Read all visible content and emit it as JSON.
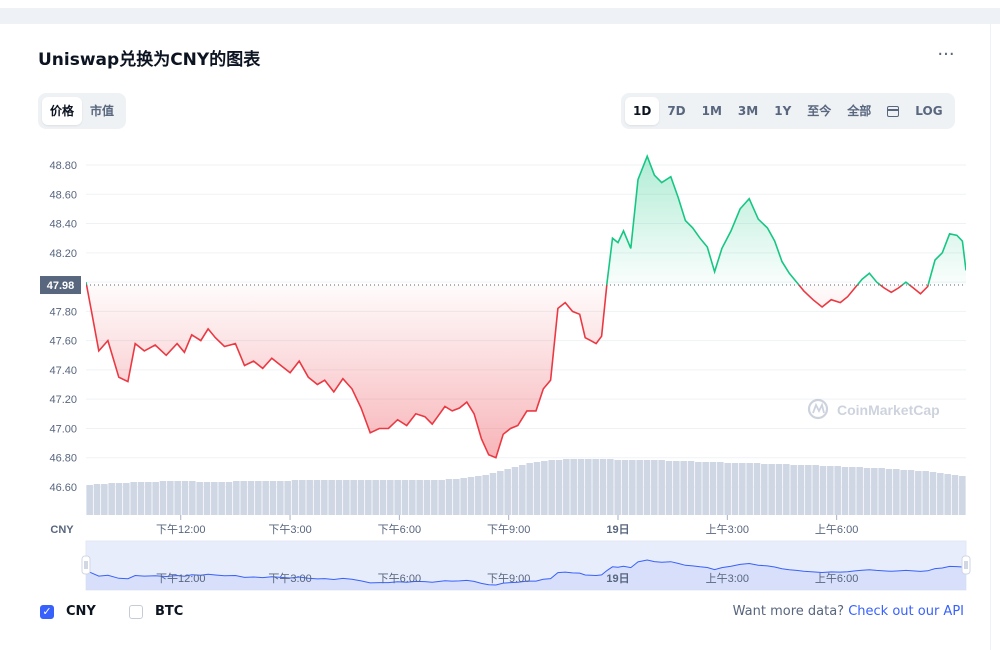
{
  "title": "Uniswap兑换为CNY的图表",
  "more_label": "···",
  "tabs_left": [
    {
      "label": "价格",
      "active": true
    },
    {
      "label": "市值",
      "active": false
    }
  ],
  "tabs_right": [
    {
      "label": "1D",
      "active": true
    },
    {
      "label": "7D",
      "active": false
    },
    {
      "label": "1M",
      "active": false
    },
    {
      "label": "3M",
      "active": false
    },
    {
      "label": "1Y",
      "active": false
    },
    {
      "label": "至今",
      "active": false
    },
    {
      "label": "全部",
      "active": false
    },
    {
      "label": "",
      "icon": "calendar-icon",
      "active": false
    },
    {
      "label": "LOG",
      "active": false
    }
  ],
  "legend": [
    {
      "label": "CNY",
      "checked": true
    },
    {
      "label": "BTC",
      "checked": false
    }
  ],
  "api_prompt": "Want more data?",
  "api_link": "Check out our API",
  "watermark": "CoinMarketCap",
  "colors": {
    "up": "#16c784",
    "down": "#ea3943",
    "brush": "#3861fb",
    "volume": "#cfd6e4"
  },
  "chart_data": {
    "type": "line",
    "currency_label": "CNY",
    "baseline": 47.98,
    "baseline_label": "47.98",
    "ylim": [
      46.5,
      49.0
    ],
    "y_ticks": [
      46.6,
      46.8,
      47.0,
      47.2,
      47.4,
      47.6,
      47.8,
      48.0,
      48.2,
      48.4,
      48.6,
      48.8
    ],
    "y_tick_labels": [
      "46.60",
      "46.80",
      "47.00",
      "47.20",
      "47.40",
      "47.60",
      "47.80",
      "48.00",
      "48.20",
      "48.40",
      "48.60",
      "48.80"
    ],
    "x_range_hours": [
      9.4,
      33.55
    ],
    "x_ticks": [
      12,
      15,
      18,
      21,
      24,
      27,
      30
    ],
    "x_tick_labels": [
      "下午12:00",
      "下午3:00",
      "下午6:00",
      "下午9:00",
      "19日",
      "上午3:00",
      "上午6:00"
    ],
    "price_series": {
      "name": "CNY",
      "hours": [
        9.4,
        9.55,
        9.75,
        10.0,
        10.3,
        10.55,
        10.75,
        11.0,
        11.3,
        11.6,
        11.9,
        12.1,
        12.3,
        12.55,
        12.75,
        12.95,
        13.2,
        13.5,
        13.75,
        14.0,
        14.25,
        14.5,
        14.75,
        15.0,
        15.25,
        15.5,
        15.75,
        15.95,
        16.2,
        16.45,
        16.7,
        16.95,
        17.2,
        17.45,
        17.7,
        17.95,
        18.2,
        18.45,
        18.7,
        18.9,
        19.05,
        19.25,
        19.45,
        19.65,
        19.85,
        20.05,
        20.25,
        20.45,
        20.65,
        20.85,
        21.05,
        21.25,
        21.5,
        21.75,
        21.95,
        22.15,
        22.35,
        22.55,
        22.75,
        22.95,
        23.1,
        23.25,
        23.4,
        23.55,
        23.7,
        23.85,
        24.0,
        24.15,
        24.35,
        24.55,
        24.8,
        25.0,
        25.2,
        25.45,
        25.65,
        25.85,
        26.05,
        26.25,
        26.45,
        26.65,
        26.85,
        27.1,
        27.35,
        27.6,
        27.85,
        28.1,
        28.3,
        28.5,
        28.7,
        28.9,
        29.1,
        29.35,
        29.6,
        29.85,
        30.1,
        30.3,
        30.5,
        30.7,
        30.9,
        31.1,
        31.3,
        31.5,
        31.7,
        31.9,
        32.1,
        32.3,
        32.5,
        32.7,
        32.9,
        33.1,
        33.3,
        33.45,
        33.55
      ],
      "values": [
        48.0,
        47.8,
        47.53,
        47.6,
        47.35,
        47.32,
        47.58,
        47.53,
        47.57,
        47.5,
        47.58,
        47.52,
        47.64,
        47.6,
        47.68,
        47.62,
        47.56,
        47.58,
        47.43,
        47.46,
        47.41,
        47.48,
        47.43,
        47.38,
        47.46,
        47.35,
        47.3,
        47.33,
        47.25,
        47.34,
        47.27,
        47.14,
        46.97,
        47.0,
        47.0,
        47.06,
        47.02,
        47.1,
        47.08,
        47.03,
        47.08,
        47.15,
        47.12,
        47.14,
        47.18,
        47.1,
        46.93,
        46.82,
        46.8,
        46.96,
        47.0,
        47.02,
        47.12,
        47.12,
        47.27,
        47.33,
        47.82,
        47.86,
        47.8,
        47.78,
        47.62,
        47.6,
        47.58,
        47.63,
        48.0,
        48.3,
        48.27,
        48.35,
        48.23,
        48.7,
        48.86,
        48.73,
        48.68,
        48.72,
        48.58,
        48.42,
        48.37,
        48.3,
        48.24,
        48.07,
        48.23,
        48.35,
        48.5,
        48.57,
        48.43,
        48.37,
        48.28,
        48.14,
        48.06,
        48.0,
        47.94,
        47.88,
        47.83,
        47.88,
        47.86,
        47.9,
        47.96,
        48.02,
        48.06,
        48.0,
        47.96,
        47.93,
        47.96,
        48.0,
        47.96,
        47.92,
        47.97,
        48.15,
        48.2,
        48.33,
        48.32,
        48.28,
        48.08
      ],
      "brush_hours": [
        9.4,
        9.55,
        9.75,
        10.0,
        10.3,
        10.55,
        10.75,
        11.0,
        11.3,
        11.6,
        11.9,
        12.1,
        12.3,
        12.55,
        12.75,
        12.95,
        13.2,
        13.5,
        13.75,
        14.0,
        14.25,
        14.5,
        14.75,
        15.0,
        15.25,
        15.5,
        15.75,
        15.95,
        16.2,
        16.45,
        16.7,
        16.95,
        17.2,
        17.45,
        17.7,
        17.95,
        18.2,
        18.45,
        18.7,
        18.9,
        19.05,
        19.25,
        19.45,
        19.65,
        19.85,
        20.05,
        20.25,
        20.45,
        20.65,
        20.85,
        21.05,
        21.25,
        21.5,
        21.75,
        21.95,
        22.15,
        22.35,
        22.55,
        22.75,
        22.95,
        23.1,
        23.25,
        23.4,
        23.55,
        23.7,
        23.85,
        24.0,
        24.15,
        24.35,
        24.55,
        24.8,
        25.0,
        25.2,
        25.45,
        25.65,
        25.85,
        26.05,
        26.25,
        26.45,
        26.65,
        26.85,
        27.1,
        27.35,
        27.6,
        27.85,
        28.1,
        28.3,
        28.5,
        28.7,
        28.9,
        29.1,
        29.35,
        29.6,
        29.85,
        30.1,
        30.3,
        30.5,
        30.7,
        30.9,
        31.1,
        31.3,
        31.5,
        31.7,
        31.9,
        32.1,
        32.3,
        32.5,
        32.7,
        32.9,
        33.1,
        33.3,
        33.45,
        33.55
      ]
    },
    "volume_series": {
      "name": "volume",
      "relative_values": [
        0.3,
        0.31,
        0.31,
        0.32,
        0.32,
        0.32,
        0.33,
        0.33,
        0.33,
        0.33,
        0.34,
        0.34,
        0.34,
        0.34,
        0.34,
        0.33,
        0.33,
        0.33,
        0.33,
        0.33,
        0.34,
        0.34,
        0.34,
        0.34,
        0.34,
        0.34,
        0.34,
        0.34,
        0.35,
        0.35,
        0.35,
        0.35,
        0.35,
        0.35,
        0.35,
        0.35,
        0.35,
        0.35,
        0.35,
        0.35,
        0.35,
        0.35,
        0.35,
        0.35,
        0.35,
        0.35,
        0.35,
        0.35,
        0.35,
        0.36,
        0.36,
        0.37,
        0.38,
        0.39,
        0.4,
        0.42,
        0.44,
        0.46,
        0.48,
        0.5,
        0.52,
        0.53,
        0.54,
        0.55,
        0.55,
        0.56,
        0.56,
        0.56,
        0.56,
        0.56,
        0.56,
        0.56,
        0.55,
        0.55,
        0.55,
        0.55,
        0.55,
        0.55,
        0.55,
        0.54,
        0.54,
        0.54,
        0.54,
        0.53,
        0.53,
        0.53,
        0.53,
        0.52,
        0.52,
        0.52,
        0.52,
        0.52,
        0.51,
        0.51,
        0.51,
        0.51,
        0.5,
        0.5,
        0.5,
        0.5,
        0.49,
        0.49,
        0.49,
        0.48,
        0.48,
        0.48,
        0.47,
        0.47,
        0.47,
        0.46,
        0.46,
        0.45,
        0.45,
        0.44,
        0.44,
        0.43,
        0.42,
        0.41,
        0.4,
        0.39
      ]
    }
  }
}
